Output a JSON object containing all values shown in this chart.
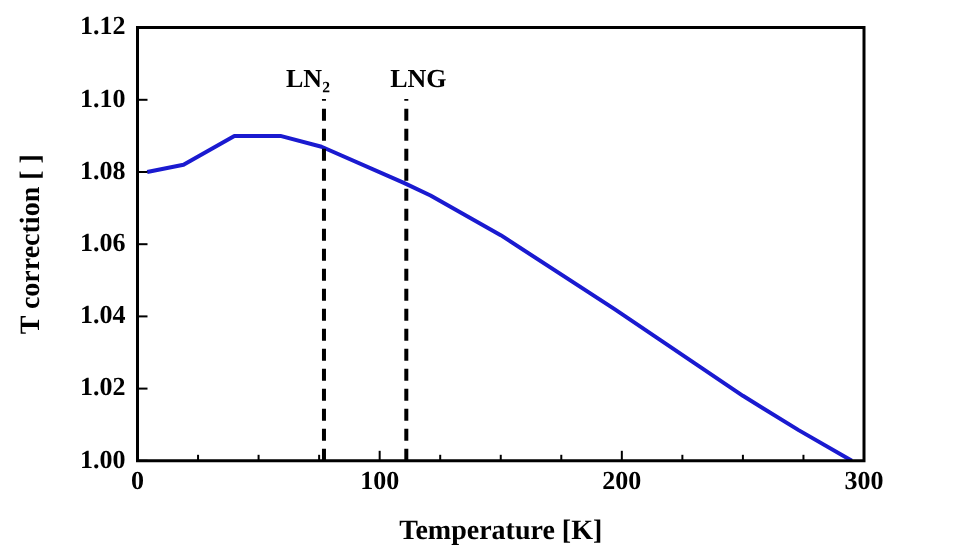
{
  "chart_data": {
    "type": "line",
    "xlabel": "Temperature [K]",
    "ylabel": "T correction [ ]",
    "x": [
      4,
      19,
      40,
      59,
      76,
      110,
      121,
      150,
      197,
      250,
      273,
      295
    ],
    "series": [
      {
        "color": "#1a1ad0",
        "values": [
          1.08,
          1.082,
          1.09,
          1.09,
          1.087,
          1.077,
          1.0735,
          1.0625,
          1.042,
          1.018,
          1.0085,
          1.0
        ]
      }
    ],
    "xlim": [
      0,
      300
    ],
    "ylim": [
      1.0,
      1.12
    ],
    "xticks": [
      0,
      {
        "value": 25,
        "label": null
      },
      {
        "value": 50,
        "label": null
      },
      {
        "value": 75,
        "label": null
      },
      100,
      {
        "value": 125,
        "label": null
      },
      {
        "value": 150,
        "label": null
      },
      {
        "value": 175,
        "label": null
      },
      200,
      {
        "value": 225,
        "label": null
      },
      {
        "value": 250,
        "label": null
      },
      {
        "value": 275,
        "label": null
      },
      300
    ],
    "yticks": [
      {
        "value": 1.0,
        "label": "1.00"
      },
      {
        "value": 1.02,
        "label": "1.02"
      },
      {
        "value": 1.04,
        "label": "1.04"
      },
      {
        "value": 1.06,
        "label": "1.06"
      },
      {
        "value": 1.08,
        "label": "1.08"
      },
      {
        "value": 1.1,
        "label": "1.10"
      },
      {
        "value": 1.12,
        "label": "1.12"
      }
    ],
    "ref_lines": [
      {
        "axis": "x",
        "value": 77,
        "label": "LN₂",
        "color": "#000000",
        "line_style": "dashed"
      },
      {
        "axis": "x",
        "value": 111,
        "label": "LNG",
        "color": "#000000",
        "line_style": "dashed"
      }
    ],
    "grid": false,
    "legend": false,
    "marker": "none",
    "line_style": "solid"
  }
}
